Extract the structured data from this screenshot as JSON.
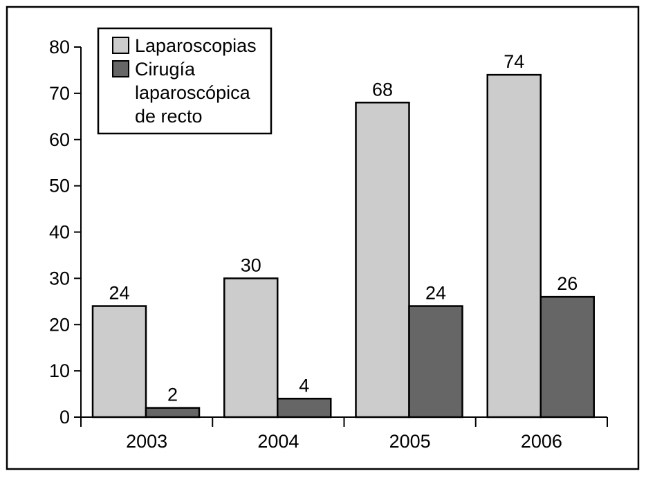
{
  "chart_data": {
    "type": "bar",
    "categories": [
      "2003",
      "2004",
      "2005",
      "2006"
    ],
    "series": [
      {
        "name": "Laparoscopias",
        "values": [
          24,
          30,
          68,
          74
        ],
        "color": "#cccccc"
      },
      {
        "name": "Cirugía laparoscópica de recto",
        "values": [
          2,
          4,
          24,
          26
        ],
        "color": "#666666"
      }
    ],
    "legend_lines": [
      [
        "Laparoscopias"
      ],
      [
        "Cirugía",
        "laparoscópica",
        "de recto"
      ]
    ],
    "ylim": [
      0,
      80
    ],
    "yticks": [
      "0",
      "10",
      "20",
      "30",
      "40",
      "50",
      "60",
      "70",
      "80"
    ],
    "grid": false,
    "legend_position": "top-left",
    "data_labels": true
  }
}
